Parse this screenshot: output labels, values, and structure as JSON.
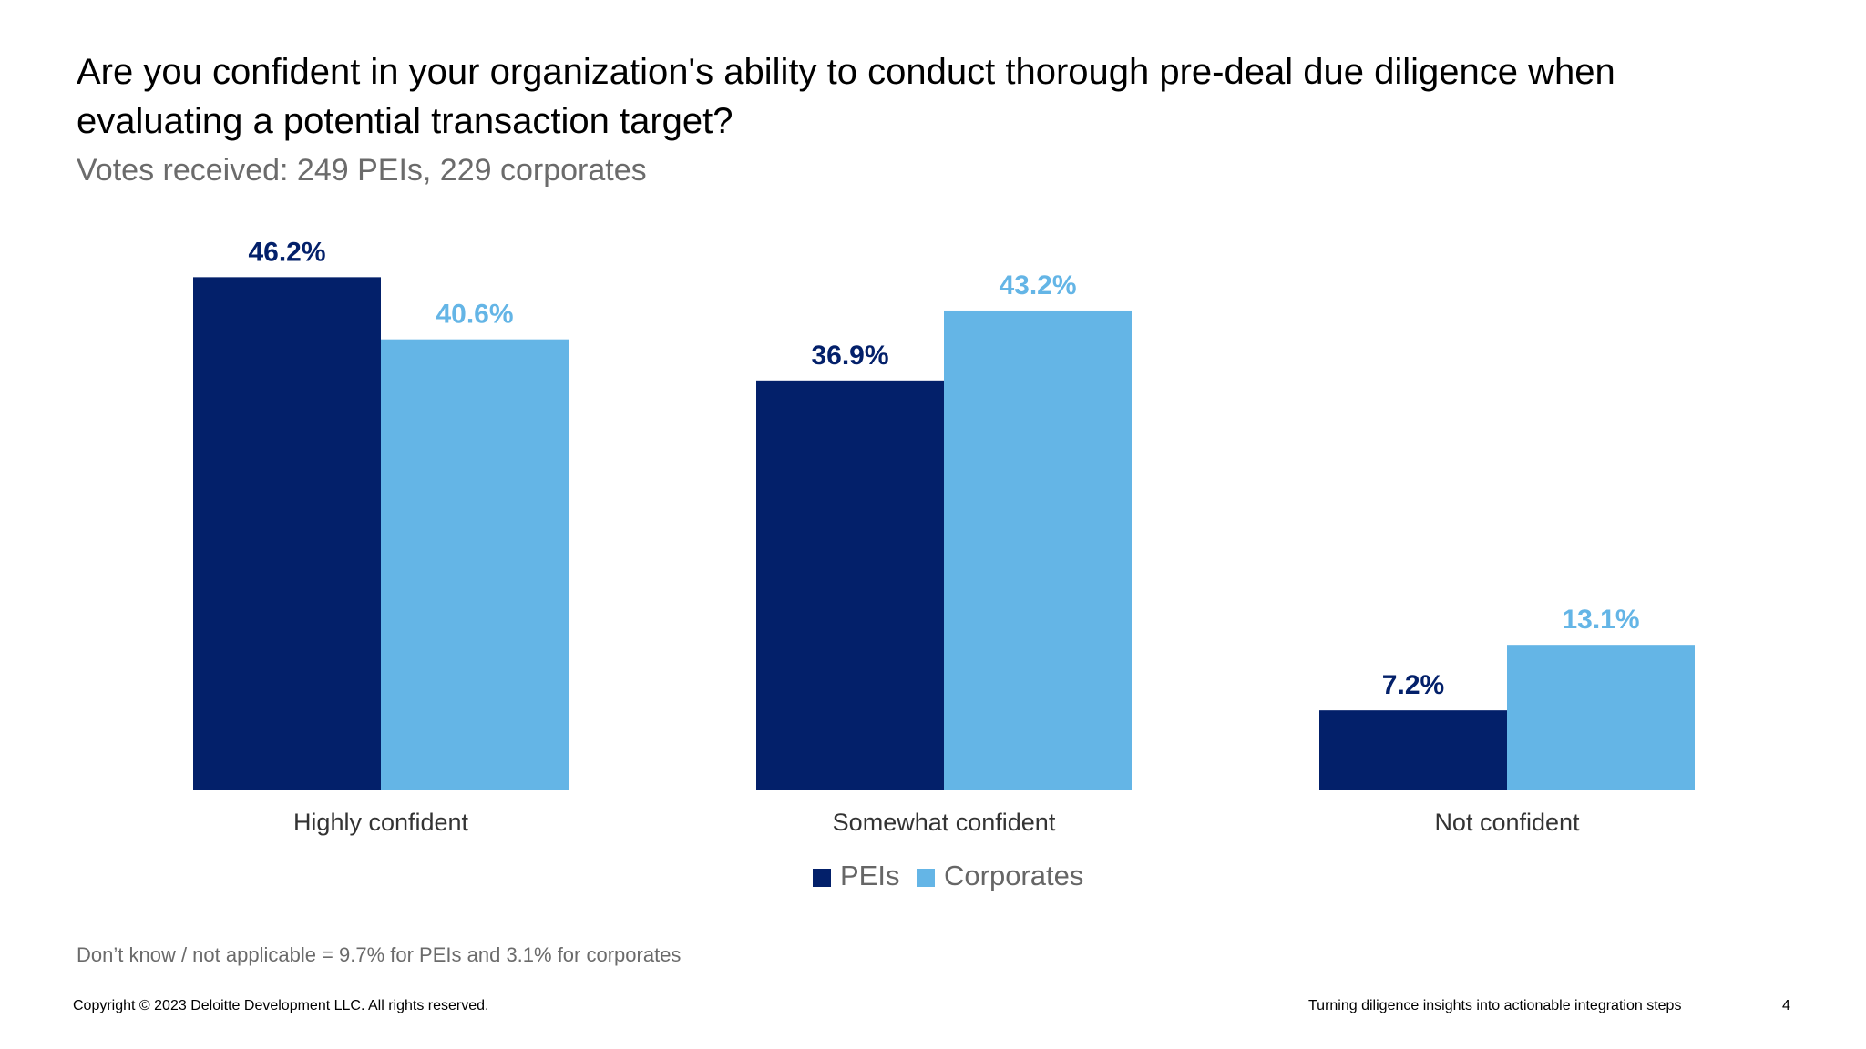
{
  "slide": {
    "title": "Are you confident in your organization's ability to conduct thorough pre-deal due diligence when evaluating a potential transaction target?",
    "subtitle": "Votes received: 249 PEIs, 229 corporates",
    "note": "Don’t know / not applicable = 9.7% for PEIs and 3.1% for corporates",
    "footer_left": "Copyright © 2023 Deloitte Development LLC. All rights reserved.",
    "footer_right": "Turning diligence insights into actionable integration steps",
    "page_number": "4"
  },
  "colors": {
    "peis": "#03206a",
    "corporates": "#64b5e6",
    "category_label": "#333333",
    "legend_text": "#666666"
  },
  "chart_data": {
    "type": "bar",
    "title": "Are you confident in your organization's ability to conduct thorough pre-deal due diligence when evaluating a potential transaction target?",
    "subtitle": "Votes received: 249 PEIs, 229 corporates",
    "xlabel": "",
    "ylabel": "",
    "ylim": [
      0,
      50
    ],
    "grid": false,
    "legend_position": "bottom-center",
    "categories": [
      "Highly confident",
      "Somewhat confident",
      "Not confident"
    ],
    "series": [
      {
        "name": "PEIs",
        "values": [
          46.2,
          36.9,
          7.2
        ],
        "labels": [
          "46.2%",
          "36.9%",
          "7.2%"
        ]
      },
      {
        "name": "Corporates",
        "values": [
          40.6,
          43.2,
          13.1
        ],
        "labels": [
          "40.6%",
          "43.2%",
          "13.1%"
        ]
      }
    ]
  }
}
